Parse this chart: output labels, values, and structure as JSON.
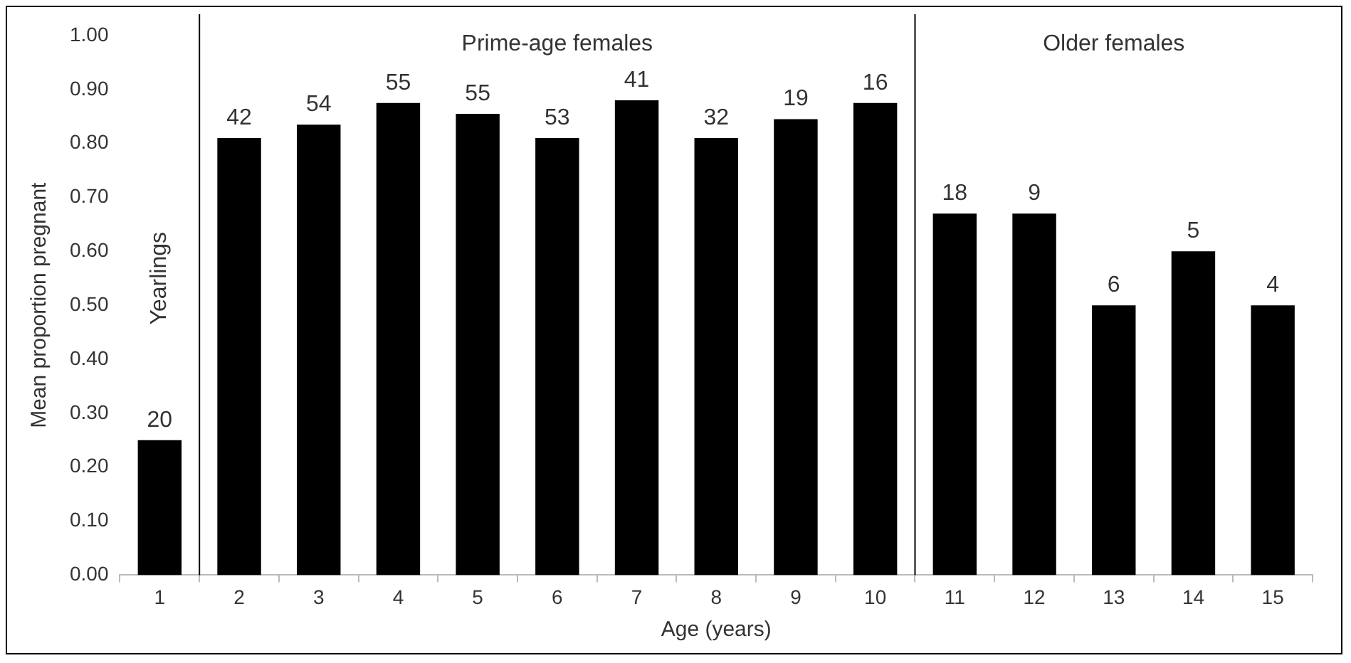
{
  "chart_data": {
    "type": "bar",
    "xlabel": "Age (years)",
    "ylabel": "Mean proportion pregnant",
    "x": [
      1,
      2,
      3,
      4,
      5,
      6,
      7,
      8,
      9,
      10,
      11,
      12,
      13,
      14,
      15
    ],
    "values": [
      0.25,
      0.81,
      0.835,
      0.875,
      0.855,
      0.81,
      0.88,
      0.81,
      0.845,
      0.875,
      0.67,
      0.67,
      0.5,
      0.6,
      0.5
    ],
    "color": "#000000",
    "xlim": [
      0.5,
      15.5
    ],
    "xticks": [
      1,
      2,
      3,
      4,
      5,
      6,
      7,
      8,
      9,
      10,
      11,
      12,
      13,
      14,
      15
    ],
    "ylim": [
      0,
      1
    ],
    "yticks": [
      {
        "value": 0,
        "label": "0.00"
      },
      {
        "value": 0.1,
        "label": "0.10"
      },
      {
        "value": 0.2,
        "label": "0.20"
      },
      {
        "value": 0.3,
        "label": "0.30"
      },
      {
        "value": 0.4,
        "label": "0.40"
      },
      {
        "value": 0.5,
        "label": "0.50"
      },
      {
        "value": 0.6,
        "label": "0.60"
      },
      {
        "value": 0.7,
        "label": "0.70"
      },
      {
        "value": 0.8,
        "label": "0.80"
      },
      {
        "value": 0.9,
        "label": "0.90"
      },
      {
        "value": 1,
        "label": "1.00"
      }
    ],
    "ref_lines": [
      {
        "axis": "x",
        "value": 1.5,
        "color": "#000000"
      },
      {
        "axis": "x",
        "value": 10.5,
        "color": "#000000"
      }
    ],
    "annotations": [
      "Yearlings",
      "Prime-age females",
      "Older females",
      {
        "text": "20",
        "x": 1,
        "y": 0.25
      },
      {
        "text": "42",
        "x": 2,
        "y": 0.81
      },
      {
        "text": "54",
        "x": 3,
        "y": 0.835
      },
      {
        "text": "55",
        "x": 4,
        "y": 0.875
      },
      {
        "text": "55",
        "x": 5,
        "y": 0.855
      },
      {
        "text": "53",
        "x": 6,
        "y": 0.81
      },
      {
        "text": "41",
        "x": 7,
        "y": 0.88
      },
      {
        "text": "32",
        "x": 8,
        "y": 0.81
      },
      {
        "text": "19",
        "x": 9,
        "y": 0.845
      },
      {
        "text": "16",
        "x": 10,
        "y": 0.875
      },
      {
        "text": "18",
        "x": 11,
        "y": 0.67
      },
      {
        "text": "9",
        "x": 12,
        "y": 0.67
      },
      {
        "text": "6",
        "x": 13,
        "y": 0.5
      },
      {
        "text": "5",
        "x": 14,
        "y": 0.6
      },
      {
        "text": "4",
        "x": 15,
        "y": 0.5
      }
    ],
    "grid": false,
    "legend": false
  }
}
